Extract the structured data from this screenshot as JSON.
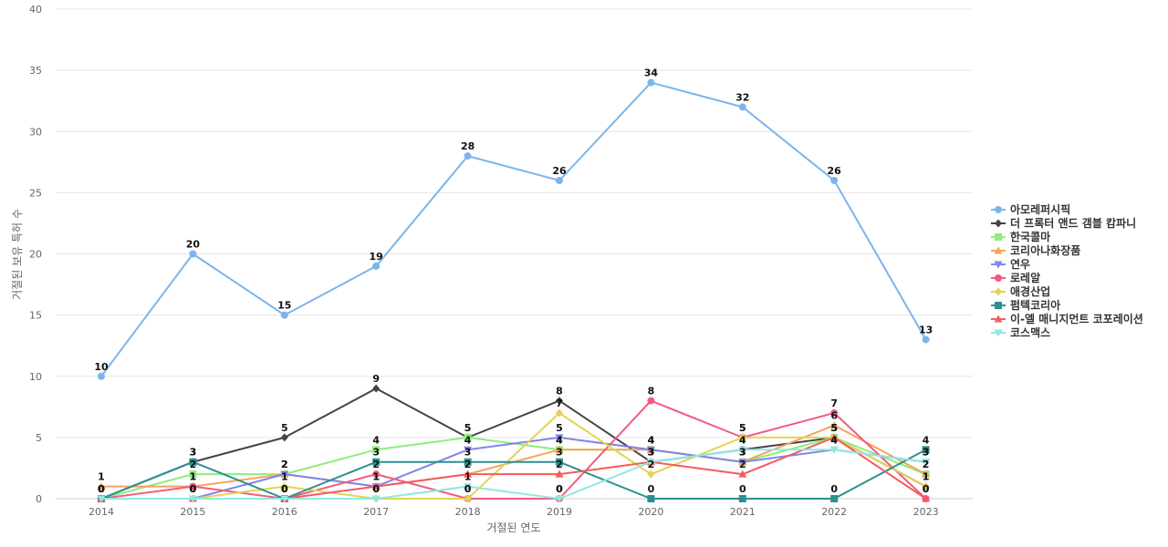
{
  "chart_data": {
    "type": "line",
    "xlabel": "거절된 연도",
    "ylabel": "거절된 보유 특허 수",
    "ylim": [
      0,
      40
    ],
    "yticks": [
      0,
      5,
      10,
      15,
      20,
      25,
      30,
      35,
      40
    ],
    "grid": true,
    "legend_position": "right",
    "categories": [
      "2014",
      "2015",
      "2016",
      "2017",
      "2018",
      "2019",
      "2020",
      "2021",
      "2022",
      "2023"
    ],
    "series": [
      {
        "name": "아모레퍼시픽",
        "color": "#7cb5ec",
        "marker": "circle",
        "values": [
          10,
          20,
          15,
          19,
          28,
          26,
          34,
          32,
          26,
          13
        ]
      },
      {
        "name": "더 프록터 앤드 갬블 캄파니",
        "color": "#434348",
        "marker": "diamond",
        "values": [
          0,
          3,
          5,
          9,
          5,
          8,
          3,
          4,
          5,
          1
        ]
      },
      {
        "name": "한국콜마",
        "color": "#90ed7d",
        "marker": "square",
        "values": [
          0,
          2,
          2,
          4,
          5,
          4,
          4,
          3,
          5,
          2
        ]
      },
      {
        "name": "코리아나화장품",
        "color": "#f7a35c",
        "marker": "triangle",
        "values": [
          1,
          1,
          2,
          1,
          2,
          4,
          4,
          3,
          6,
          2
        ]
      },
      {
        "name": "연우",
        "color": "#8085e9",
        "marker": "triangle-down",
        "values": [
          0,
          0,
          2,
          1,
          4,
          5,
          4,
          3,
          4,
          3
        ]
      },
      {
        "name": "로레알",
        "color": "#f15c80",
        "marker": "circle",
        "values": [
          0,
          1,
          0,
          2,
          0,
          0,
          8,
          5,
          7,
          0
        ]
      },
      {
        "name": "애경산업",
        "color": "#e4d354",
        "marker": "diamond",
        "values": [
          0,
          0,
          1,
          0,
          0,
          7,
          2,
          5,
          5,
          1
        ]
      },
      {
        "name": "펌텍코리아",
        "color": "#2b908f",
        "marker": "square",
        "values": [
          0,
          3,
          0,
          3,
          3,
          3,
          0,
          0,
          0,
          4
        ]
      },
      {
        "name": "이-엘 매니지먼트 코포레이션",
        "color": "#f45b5b",
        "marker": "triangle",
        "values": [
          0,
          0,
          0,
          1,
          2,
          2,
          3,
          2,
          5,
          0
        ]
      },
      {
        "name": "코스맥스",
        "color": "#91e8e1",
        "marker": "triangle-down",
        "values": [
          0,
          0,
          0,
          0,
          1,
          0,
          3,
          4,
          4,
          3
        ]
      }
    ]
  }
}
